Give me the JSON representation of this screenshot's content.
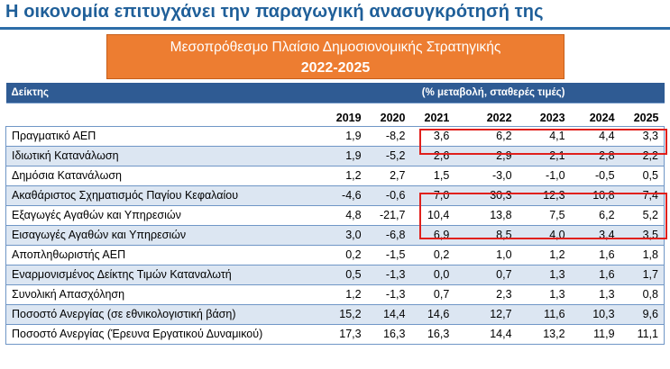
{
  "headline": "Η οικονομία επιτυγχάνει την παραγωγική ανασυγκρότησή της",
  "banner": {
    "title": "Μεσοπρόθεσμο Πλαίσιο Δημοσιονομικής Στρατηγικής",
    "years": "2022-2025"
  },
  "table": {
    "header_label": "Δείκτης",
    "header_unit": "(% μεταβολή, σταθερές τιμές)",
    "years": [
      "2019",
      "2020",
      "2021",
      "2022",
      "2023",
      "2024",
      "2025"
    ],
    "rows": [
      {
        "label": "Πραγματικό ΑΕΠ",
        "values": [
          "1,9",
          "-8,2",
          "3,6",
          "6,2",
          "4,1",
          "4,4",
          "3,3"
        ]
      },
      {
        "label": "Ιδιωτική Κατανάλωση",
        "values": [
          "1,9",
          "-5,2",
          "2,6",
          "2,9",
          "2,1",
          "2,8",
          "2,2"
        ]
      },
      {
        "label": "Δημόσια Κατανάλωση",
        "values": [
          "1,2",
          "2,7",
          "1,5",
          "-3,0",
          "-1,0",
          "-0,5",
          "0,5"
        ]
      },
      {
        "label": "Ακαθάριστος Σχηματισμός Παγίου Κεφαλαίου",
        "values": [
          "-4,6",
          "-0,6",
          "7,0",
          "30,3",
          "12,3",
          "10,8",
          "7,4"
        ]
      },
      {
        "label": "Εξαγωγές Αγαθών και Υπηρεσιών",
        "values": [
          "4,8",
          "-21,7",
          "10,4",
          "13,8",
          "7,5",
          "6,2",
          "5,2"
        ]
      },
      {
        "label": "Εισαγωγές Αγαθών και Υπηρεσιών",
        "values": [
          "3,0",
          "-6,8",
          "6,9",
          "8,5",
          "4,0",
          "3,4",
          "3,5"
        ]
      },
      {
        "label": "Αποπληθωριστής ΑΕΠ",
        "values": [
          "0,2",
          "-1,5",
          "0,2",
          "1,0",
          "1,2",
          "1,6",
          "1,8"
        ]
      },
      {
        "label": "Εναρμονισμένος Δείκτης Τιμών Καταναλωτή",
        "values": [
          "0,5",
          "-1,3",
          "0,0",
          "0,7",
          "1,3",
          "1,6",
          "1,7"
        ]
      },
      {
        "label": "Συνολική Απασχόληση",
        "values": [
          "1,2",
          "-1,3",
          "0,7",
          "2,3",
          "1,3",
          "1,3",
          "0,8"
        ]
      },
      {
        "label": "Ποσοστό Ανεργίας (σε εθνικολογιστική βάση)",
        "values": [
          "15,2",
          "14,4",
          "14,6",
          "12,7",
          "11,6",
          "10,3",
          "9,6"
        ]
      },
      {
        "label": "Ποσοστό Ανεργίας (Έρευνα Εργατικού Δυναμικού)",
        "values": [
          "17,3",
          "16,3",
          "16,3",
          "14,4",
          "13,2",
          "11,9",
          "11,1"
        ]
      }
    ]
  },
  "colors": {
    "headline": "#1f5f99",
    "banner_bg": "#ed7d31",
    "header_bg": "#2f5b93",
    "row_alt_bg": "#dce6f2",
    "highlight": "#e0201c"
  }
}
